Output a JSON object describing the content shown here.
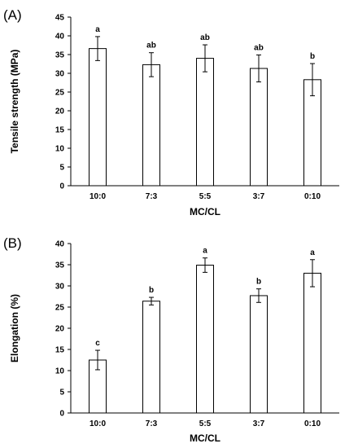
{
  "chart_data": [
    {
      "type": "bar",
      "panel_label": "(A)",
      "categories": [
        "10:0",
        "7:3",
        "5:5",
        "3:7",
        "0:10"
      ],
      "values": [
        36.6,
        32.3,
        34.0,
        31.3,
        28.3
      ],
      "errors": [
        3.2,
        3.2,
        3.6,
        3.6,
        4.3
      ],
      "significance": [
        "a",
        "ab",
        "ab",
        "ab",
        "b"
      ],
      "xlabel": "MC/CL",
      "ylabel": "Tensile strength (MPa)",
      "ylim": [
        0,
        45
      ],
      "yticks": [
        0,
        5,
        10,
        15,
        20,
        25,
        30,
        35,
        40,
        45
      ],
      "grid": false
    },
    {
      "type": "bar",
      "panel_label": "(B)",
      "categories": [
        "10:0",
        "7:3",
        "5:5",
        "3:7",
        "0:10"
      ],
      "values": [
        12.5,
        26.4,
        34.9,
        27.7,
        33.0
      ],
      "errors": [
        2.3,
        0.9,
        1.7,
        1.6,
        3.2
      ],
      "significance": [
        "c",
        "b",
        "a",
        "b",
        "a"
      ],
      "xlabel": "MC/CL",
      "ylabel": "Elongation (%)",
      "ylim": [
        0,
        40
      ],
      "yticks": [
        0,
        5,
        10,
        15,
        20,
        25,
        30,
        35,
        40
      ],
      "grid": false
    }
  ]
}
